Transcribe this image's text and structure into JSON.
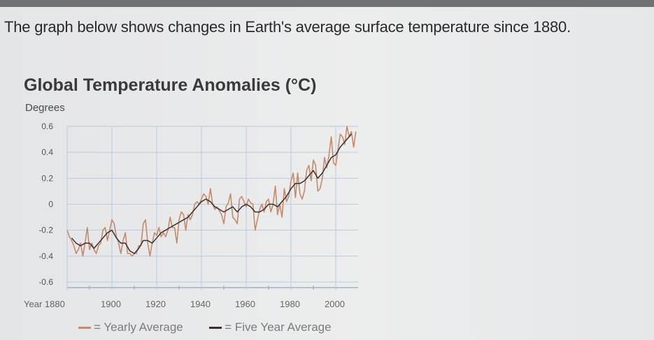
{
  "prompt": "The graph below shows changes in Earth's average surface temperature since 1880.",
  "colors": {
    "yearly": "#c78a68",
    "five_year": "#3a3032",
    "grid": "#b8cbe0",
    "axis": "#8ea6c4"
  },
  "chart_data": {
    "type": "line",
    "title": "Global Temperature Anomalies (°C)",
    "ylabel": "Degrees",
    "xlabel": "Year",
    "xlim": [
      1880,
      2010
    ],
    "ylim": [
      -0.6,
      0.6
    ],
    "x_ticks": [
      1880,
      1900,
      1920,
      1940,
      1960,
      1980,
      2000
    ],
    "y_ticks": [
      "0.6",
      "0.4",
      "0.2",
      "0",
      "-0.2",
      "-0.4",
      "-0.6"
    ],
    "grid": true,
    "legend_position": "bottom",
    "series": [
      {
        "name": "Yearly Average",
        "x": [
          1880,
          1881,
          1882,
          1883,
          1884,
          1885,
          1886,
          1887,
          1888,
          1889,
          1890,
          1891,
          1892,
          1893,
          1894,
          1895,
          1896,
          1897,
          1898,
          1899,
          1900,
          1901,
          1902,
          1903,
          1904,
          1905,
          1906,
          1907,
          1908,
          1909,
          1910,
          1911,
          1912,
          1913,
          1914,
          1915,
          1916,
          1917,
          1918,
          1919,
          1920,
          1921,
          1922,
          1923,
          1924,
          1925,
          1926,
          1927,
          1928,
          1929,
          1930,
          1931,
          1932,
          1933,
          1934,
          1935,
          1936,
          1937,
          1938,
          1939,
          1940,
          1941,
          1942,
          1943,
          1944,
          1945,
          1946,
          1947,
          1948,
          1949,
          1950,
          1951,
          1952,
          1953,
          1954,
          1955,
          1956,
          1957,
          1958,
          1959,
          1960,
          1961,
          1962,
          1963,
          1964,
          1965,
          1966,
          1967,
          1968,
          1969,
          1970,
          1971,
          1972,
          1973,
          1974,
          1975,
          1976,
          1977,
          1978,
          1979,
          1980,
          1981,
          1982,
          1983,
          1984,
          1985,
          1986,
          1987,
          1988,
          1989,
          1990,
          1991,
          1992,
          1993,
          1994,
          1995,
          1996,
          1997,
          1998,
          1999,
          2000,
          2001,
          2002,
          2003,
          2004,
          2005,
          2006,
          2007,
          2008,
          2009
        ],
        "values": [
          -0.2,
          -0.25,
          -0.28,
          -0.32,
          -0.38,
          -0.35,
          -0.3,
          -0.4,
          -0.3,
          -0.18,
          -0.35,
          -0.3,
          -0.35,
          -0.38,
          -0.32,
          -0.3,
          -0.2,
          -0.18,
          -0.28,
          -0.2,
          -0.12,
          -0.15,
          -0.25,
          -0.3,
          -0.38,
          -0.28,
          -0.22,
          -0.38,
          -0.38,
          -0.4,
          -0.38,
          -0.38,
          -0.32,
          -0.32,
          -0.15,
          -0.12,
          -0.3,
          -0.4,
          -0.3,
          -0.22,
          -0.24,
          -0.18,
          -0.25,
          -0.22,
          -0.25,
          -0.2,
          -0.1,
          -0.18,
          -0.18,
          -0.3,
          -0.12,
          -0.06,
          -0.08,
          -0.2,
          -0.08,
          -0.12,
          -0.08,
          0.0,
          0.02,
          0.0,
          0.04,
          0.08,
          0.06,
          0.0,
          0.12,
          0.0,
          -0.04,
          -0.02,
          -0.05,
          -0.08,
          -0.15,
          -0.02,
          0.01,
          0.08,
          -0.1,
          -0.12,
          -0.15,
          0.04,
          0.06,
          0.02,
          -0.02,
          0.04,
          0.01,
          0.0,
          -0.2,
          -0.12,
          -0.04,
          0.0,
          -0.06,
          0.02,
          0.04,
          -0.06,
          0.0,
          0.14,
          -0.08,
          0.0,
          -0.1,
          0.12,
          0.02,
          0.06,
          0.18,
          0.24,
          0.05,
          0.24,
          0.08,
          0.04,
          0.1,
          0.26,
          0.3,
          0.18,
          0.34,
          0.3,
          0.1,
          0.12,
          0.2,
          0.36,
          0.28,
          0.38,
          0.52,
          0.32,
          0.3,
          0.42,
          0.54,
          0.52,
          0.46,
          0.6,
          0.52,
          0.56,
          0.44,
          0.56
        ]
      },
      {
        "name": "Five Year Average",
        "x": [
          1882,
          1884,
          1886,
          1888,
          1890,
          1892,
          1894,
          1896,
          1898,
          1900,
          1902,
          1904,
          1906,
          1908,
          1910,
          1912,
          1914,
          1916,
          1918,
          1920,
          1922,
          1924,
          1926,
          1928,
          1930,
          1932,
          1934,
          1936,
          1938,
          1940,
          1942,
          1944,
          1946,
          1948,
          1950,
          1952,
          1954,
          1956,
          1958,
          1960,
          1962,
          1964,
          1966,
          1968,
          1970,
          1972,
          1974,
          1976,
          1978,
          1980,
          1982,
          1984,
          1986,
          1988,
          1990,
          1992,
          1994,
          1996,
          1998,
          2000,
          2002,
          2004,
          2006,
          2007
        ],
        "values": [
          -0.26,
          -0.3,
          -0.32,
          -0.3,
          -0.3,
          -0.34,
          -0.3,
          -0.26,
          -0.22,
          -0.2,
          -0.26,
          -0.3,
          -0.3,
          -0.36,
          -0.38,
          -0.34,
          -0.28,
          -0.28,
          -0.3,
          -0.26,
          -0.22,
          -0.2,
          -0.18,
          -0.16,
          -0.14,
          -0.12,
          -0.1,
          -0.06,
          -0.02,
          0.02,
          0.04,
          0.02,
          -0.02,
          -0.04,
          -0.06,
          -0.04,
          -0.02,
          -0.06,
          -0.02,
          0.0,
          -0.02,
          -0.06,
          -0.06,
          -0.04,
          0.0,
          0.0,
          -0.02,
          0.02,
          0.06,
          0.12,
          0.16,
          0.16,
          0.18,
          0.22,
          0.26,
          0.2,
          0.24,
          0.3,
          0.36,
          0.38,
          0.44,
          0.48,
          0.52,
          0.54
        ]
      }
    ]
  },
  "legend": {
    "yearly_label": "= Yearly Average",
    "five_year_label": "= Five Year Average"
  }
}
